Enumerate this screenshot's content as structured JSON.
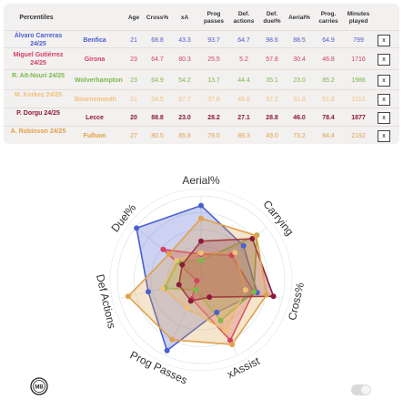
{
  "table": {
    "headers": {
      "percentiles": "Percentiles",
      "age": "Age",
      "cross": "Cross%",
      "xa": "xA",
      "prog_passes": "Prog passes",
      "def_actions": "Def. actions",
      "def_duel": "Def. duel%",
      "aerial": "Aerial%",
      "prog_carries": "Prog. carries",
      "minutes": "Minutes played"
    },
    "remove_label": "x",
    "rows": [
      {
        "name": "Álvaro Carreras 24/25",
        "team": "Benfica",
        "age": "21",
        "cross": "68.8",
        "xa": "43.3",
        "prog_passes": "93.7",
        "def_actions": "64.7",
        "def_duel": "98.6",
        "aerial": "88.5",
        "prog_carries": "64.9",
        "minutes": "799",
        "color": "#4a5fd0"
      },
      {
        "name": "Miguel Gutiérrez 24/25",
        "team": "Girona",
        "age": "23",
        "cross": "64.7",
        "xa": "80.3",
        "prog_passes": "25.5",
        "def_actions": "5.2",
        "def_duel": "57.8",
        "aerial": "30.4",
        "prog_carries": "46.8",
        "minutes": "1716",
        "color": "#d43f63"
      },
      {
        "name": "R. Aït-Nouri 24/25",
        "team": "Wolverhampton",
        "age": "23",
        "cross": "64.9",
        "xa": "54.2",
        "prog_passes": "13.7",
        "def_actions": "44.4",
        "def_duel": "35.1",
        "aerial": "23.0",
        "prog_carries": "85.2",
        "minutes": "1986",
        "color": "#7cba4a"
      },
      {
        "name": "M. Kerkez 24/25",
        "team": "Bournemouth",
        "age": "21",
        "cross": "54.5",
        "xa": "67.7",
        "prog_passes": "37.8",
        "def_actions": "46.8",
        "def_duel": "37.2",
        "aerial": "31.8",
        "prog_carries": "51.8",
        "minutes": "2112",
        "color": "#f2c078"
      },
      {
        "name": "P. Dorgu 24/25",
        "team": "Lecce",
        "age": "20",
        "cross": "88.8",
        "xa": "23.0",
        "prog_passes": "28.2",
        "def_actions": "27.1",
        "def_duel": "28.8",
        "aerial": "46.0",
        "prog_carries": "78.4",
        "minutes": "1877",
        "color": "#8b1a3a"
      },
      {
        "name": "A. Robinson 24/25",
        "team": "Fulham",
        "age": "27",
        "cross": "80.5",
        "xa": "85.8",
        "prog_passes": "79.5",
        "def_actions": "89.3",
        "def_duel": "49.0",
        "aerial": "73.2",
        "prog_carries": "84.4",
        "minutes": "2192",
        "color": "#e0a24a"
      }
    ]
  },
  "chart_data": {
    "type": "radar",
    "axes": [
      "Aerial%",
      "Carrying",
      "Cross%",
      "xAssist",
      "Prog Passes",
      "Def Actions",
      "Duel%"
    ],
    "range": [
      0,
      100
    ],
    "series": [
      {
        "name": "Álvaro Carreras 24/25",
        "color": "#4a5fd0",
        "values": [
          88.5,
          64.9,
          68.8,
          43.3,
          93.7,
          64.7,
          98.6
        ]
      },
      {
        "name": "Miguel Gutiérrez 24/25",
        "color": "#d43f63",
        "values": [
          30.4,
          46.8,
          64.7,
          80.3,
          25.5,
          5.2,
          57.8
        ]
      },
      {
        "name": "R. Aït-Nouri 24/25",
        "color": "#7cba4a",
        "values": [
          23.0,
          85.2,
          64.9,
          54.2,
          13.7,
          44.4,
          35.1
        ]
      },
      {
        "name": "M. Kerkez 24/25",
        "color": "#f2c078",
        "values": [
          31.8,
          51.8,
          54.5,
          67.7,
          37.8,
          46.8,
          37.2
        ]
      },
      {
        "name": "P. Dorgu 24/25",
        "color": "#8b1a3a",
        "values": [
          46.0,
          78.4,
          88.8,
          23.0,
          28.2,
          27.1,
          28.8
        ]
      },
      {
        "name": "A. Robinson 24/25",
        "color": "#e0a24a",
        "values": [
          73.2,
          84.4,
          80.5,
          85.8,
          79.5,
          89.3,
          49.0
        ]
      }
    ]
  },
  "logo_text": "MB"
}
